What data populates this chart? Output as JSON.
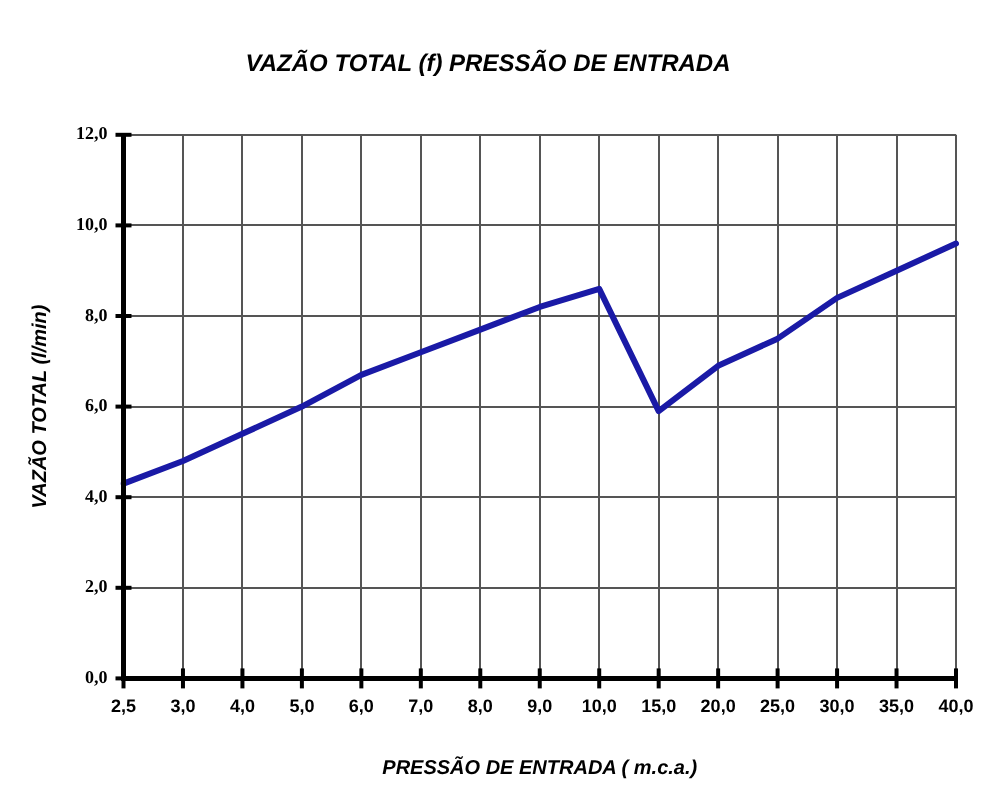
{
  "chart_data": {
    "type": "line",
    "title": "VAZÃO TOTAL (f) PRESSÃO DE ENTRADA",
    "xlabel": "PRESSÃO DE ENTRADA ( m.c.a.)",
    "ylabel": "VAZÃO TOTAL (l/min)",
    "categories": [
      "2,5",
      "3,0",
      "4,0",
      "5,0",
      "6,0",
      "7,0",
      "8,0",
      "9,0",
      "10,0",
      "15,0",
      "20,0",
      "25,0",
      "30,0",
      "35,0",
      "40,0"
    ],
    "series": [
      {
        "color": "#1a1aa6",
        "values": [
          4.3,
          4.8,
          5.4,
          6.0,
          6.7,
          7.2,
          7.7,
          8.2,
          8.6,
          5.9,
          6.9,
          7.5,
          8.4,
          9.0,
          9.6
        ]
      }
    ],
    "ylim": [
      0,
      12
    ],
    "yticks": [
      {
        "value": 0,
        "label": "0,0"
      },
      {
        "value": 2,
        "label": "2,0"
      },
      {
        "value": 4,
        "label": "4,0"
      },
      {
        "value": 6,
        "label": "6,0"
      },
      {
        "value": 8,
        "label": "8,0"
      },
      {
        "value": 10,
        "label": "10,0"
      },
      {
        "value": 12,
        "label": "12,0"
      }
    ],
    "grid": true,
    "legend": false,
    "marker": "none",
    "line_style": "solid"
  }
}
